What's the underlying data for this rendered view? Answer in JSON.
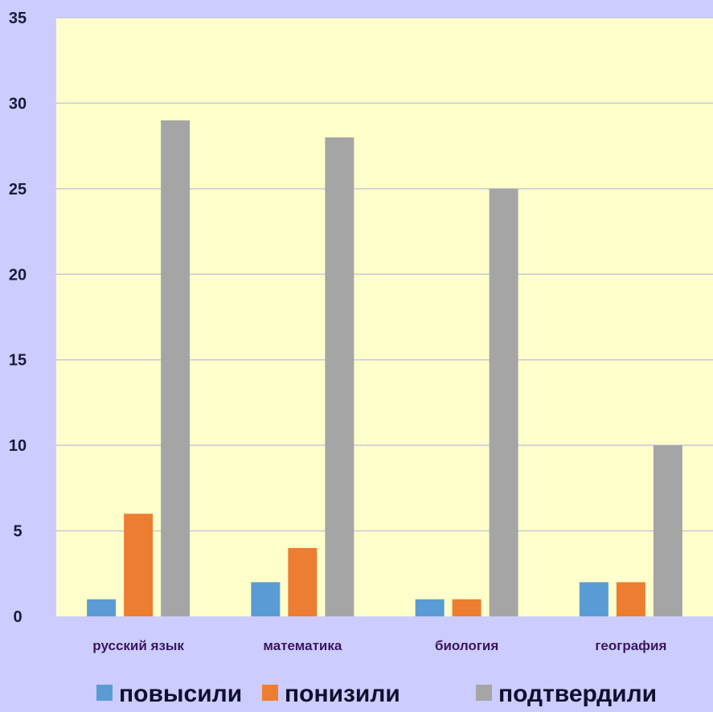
{
  "chart_data": {
    "type": "bar",
    "categories": [
      "русский язык",
      "математика",
      "биология",
      "география"
    ],
    "series": [
      {
        "name": "повысили",
        "color": "#5b9bd5",
        "values": [
          1,
          2,
          1,
          2
        ]
      },
      {
        "name": "понизили",
        "color": "#ed7d31",
        "values": [
          6,
          4,
          1,
          2
        ]
      },
      {
        "name": "подтвердили",
        "color": "#a5a5a5",
        "values": [
          29,
          28,
          25,
          10
        ]
      }
    ],
    "title": "",
    "xlabel": "",
    "ylabel": "",
    "ylim": [
      0,
      35
    ],
    "yticks": [
      "0",
      "5",
      "10",
      "15",
      "20",
      "25",
      "30",
      "35"
    ],
    "grid": true,
    "legend_position": "bottom",
    "plot_background": "#ffffcc",
    "page_background": "#ccccff"
  }
}
